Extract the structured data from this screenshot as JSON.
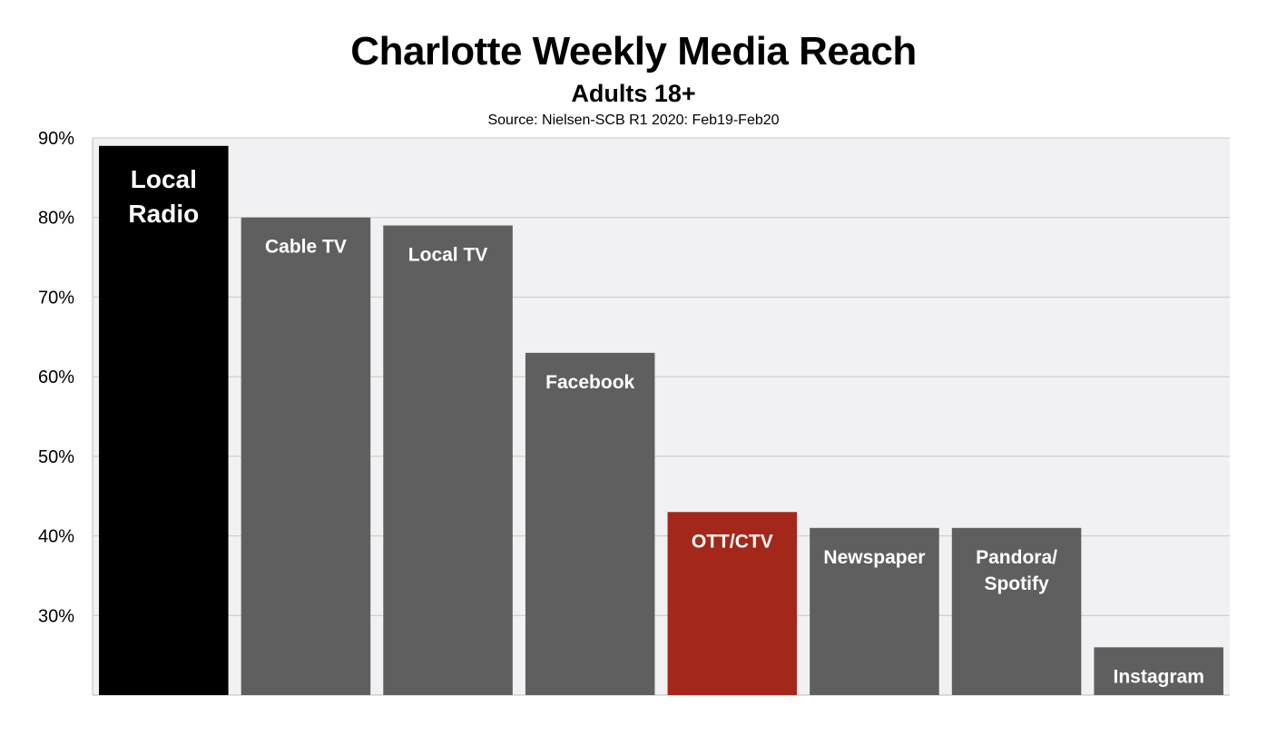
{
  "chart_data": {
    "type": "bar",
    "title": "Charlotte Weekly Media Reach",
    "subtitle": "Adults 18+",
    "source": "Source: Nielsen-SCB R1 2020: Feb19-Feb20",
    "categories": [
      "Local Radio",
      "Cable TV",
      "Local TV",
      "Facebook",
      "OTT/CTV",
      "Newspaper",
      "Pandora/ Spotify",
      "Instagram"
    ],
    "bar_label_lines": [
      [
        "Local",
        "Radio"
      ],
      [
        "Cable TV"
      ],
      [
        "Local TV"
      ],
      [
        "Facebook"
      ],
      [
        "OTT/CTV"
      ],
      [
        "Newspaper"
      ],
      [
        "Pandora/",
        "Spotify"
      ],
      [
        "Instagram"
      ]
    ],
    "values": [
      89,
      80,
      79,
      63,
      43,
      41,
      41,
      26
    ],
    "bar_colors": [
      "#000000",
      "#5f5f5f",
      "#5f5f5f",
      "#5f5f5f",
      "#a4281a",
      "#5f5f5f",
      "#5f5f5f",
      "#5f5f5f"
    ],
    "plot_background": "#f1f1f3",
    "gridline_color": "#c8c8c8",
    "ylim": [
      20,
      90
    ],
    "yticks": [
      30,
      40,
      50,
      60,
      70,
      80,
      90
    ],
    "ytick_labels": [
      "30%",
      "40%",
      "50%",
      "60%",
      "70%",
      "80%",
      "90%"
    ],
    "grid": true,
    "legend": "none",
    "xlabel": "",
    "ylabel": ""
  }
}
